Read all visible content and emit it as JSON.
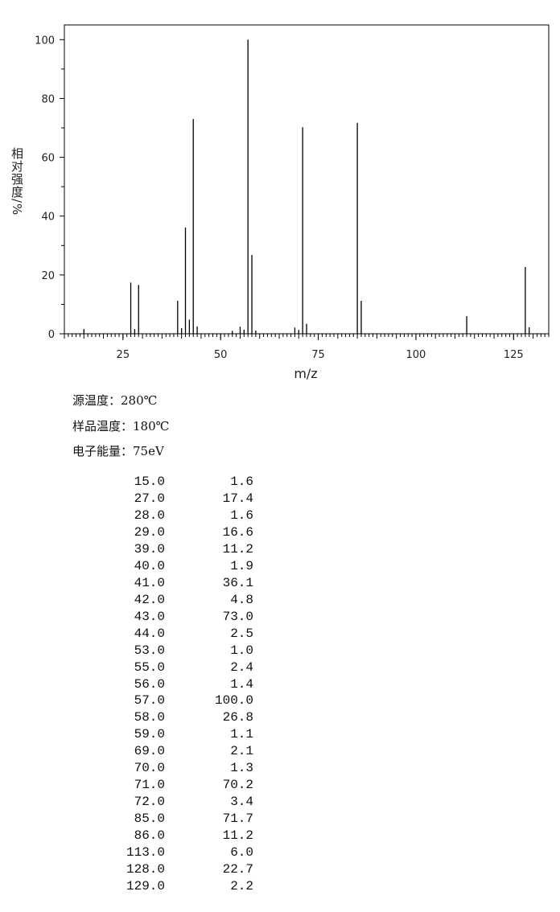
{
  "chart_data": {
    "type": "bar",
    "y_label": "相对强度/%",
    "x_label": "m/z",
    "x": [
      15,
      27,
      28,
      29,
      39,
      40,
      41,
      42,
      43,
      44,
      53,
      55,
      56,
      57,
      58,
      59,
      69,
      70,
      71,
      72,
      85,
      86,
      113,
      128,
      129
    ],
    "values": [
      1.6,
      17.4,
      1.6,
      16.6,
      11.2,
      1.9,
      36.1,
      4.8,
      73.0,
      2.5,
      1.0,
      2.4,
      1.4,
      100.0,
      26.8,
      1.1,
      2.1,
      1.3,
      70.2,
      3.4,
      71.7,
      11.2,
      6.0,
      22.7,
      2.2
    ],
    "color": "#000000",
    "xlim": [
      10,
      134
    ],
    "xticks": [
      25,
      50,
      75,
      100,
      125
    ],
    "ylim": [
      0,
      105
    ],
    "yticks": [
      0,
      20,
      40,
      60,
      80,
      100
    ]
  },
  "info": [
    "源温度：280℃",
    "样品温度：180℃",
    "电子能量：75eV"
  ],
  "table": {
    "rows": [
      [
        "15.0",
        "1.6"
      ],
      [
        "27.0",
        "17.4"
      ],
      [
        "28.0",
        "1.6"
      ],
      [
        "29.0",
        "16.6"
      ],
      [
        "39.0",
        "11.2"
      ],
      [
        "40.0",
        "1.9"
      ],
      [
        "41.0",
        "36.1"
      ],
      [
        "42.0",
        "4.8"
      ],
      [
        "43.0",
        "73.0"
      ],
      [
        "44.0",
        "2.5"
      ],
      [
        "53.0",
        "1.0"
      ],
      [
        "55.0",
        "2.4"
      ],
      [
        "56.0",
        "1.4"
      ],
      [
        "57.0",
        "100.0"
      ],
      [
        "58.0",
        "26.8"
      ],
      [
        "59.0",
        "1.1"
      ],
      [
        "69.0",
        "2.1"
      ],
      [
        "70.0",
        "1.3"
      ],
      [
        "71.0",
        "70.2"
      ],
      [
        "72.0",
        "3.4"
      ],
      [
        "85.0",
        "71.7"
      ],
      [
        "86.0",
        "11.2"
      ],
      [
        "113.0",
        "6.0"
      ],
      [
        "128.0",
        "22.7"
      ],
      [
        "129.0",
        "2.2"
      ]
    ]
  }
}
